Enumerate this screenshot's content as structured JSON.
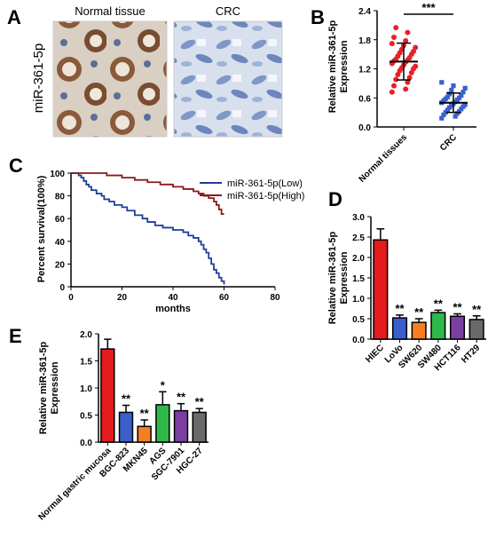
{
  "panels": {
    "A": {
      "letter": "A",
      "row_label": "miR-361-5p",
      "images": [
        {
          "label": "Normal tissue",
          "depiction": "ihc-brown-stained-glands"
        },
        {
          "label": "CRC",
          "depiction": "ihc-blue-hematoxylin-only"
        }
      ]
    },
    "B": {
      "letter": "B"
    },
    "C": {
      "letter": "C"
    },
    "D": {
      "letter": "D"
    },
    "E": {
      "letter": "E"
    }
  },
  "colors": {
    "red": "#e41a1c",
    "blue": "#3a5fcd",
    "orange": "#f57f20",
    "green": "#2fb84a",
    "purple": "#7b3fa0",
    "gray": "#6a6a6a",
    "low_line": "#1f3f9a",
    "high_line": "#8b1a1a",
    "dot_normal": "#e8202a",
    "dot_crc": "#3a5fcd"
  },
  "chart_data": [
    {
      "id": "B",
      "type": "scatter",
      "title": "",
      "ylabel": "Relative miR-361-5p\nExpression",
      "ylim": [
        0,
        2.4
      ],
      "yticks": [
        "0.0",
        "0.6",
        "1.2",
        "1.8",
        "2.4"
      ],
      "categories": [
        "Normal tissues",
        "CRC"
      ],
      "series": [
        {
          "category": "Normal tissues",
          "mean": 1.35,
          "sd": 0.38,
          "values": [
            0.72,
            0.78,
            0.85,
            0.92,
            0.98,
            1.02,
            1.08,
            1.12,
            1.16,
            1.2,
            1.22,
            1.25,
            1.28,
            1.31,
            1.34,
            1.36,
            1.38,
            1.4,
            1.43,
            1.46,
            1.5,
            1.53,
            1.56,
            1.6,
            1.64,
            1.68,
            1.72,
            1.78,
            1.85,
            1.95,
            2.05
          ]
        },
        {
          "category": "CRC",
          "mean": 0.5,
          "sd": 0.2,
          "values": [
            0.18,
            0.22,
            0.25,
            0.28,
            0.3,
            0.32,
            0.35,
            0.37,
            0.4,
            0.42,
            0.44,
            0.46,
            0.48,
            0.5,
            0.52,
            0.54,
            0.56,
            0.58,
            0.6,
            0.62,
            0.65,
            0.68,
            0.72,
            0.76,
            0.8,
            0.85,
            0.92
          ]
        }
      ],
      "significance": "***"
    },
    {
      "id": "C",
      "type": "line",
      "title": "",
      "xlabel": "months",
      "ylabel": "Percent survival(100%)",
      "xlim": [
        0,
        80
      ],
      "ylim": [
        0,
        100
      ],
      "xticks": [
        "0",
        "20",
        "40",
        "60",
        "80"
      ],
      "yticks": [
        "0",
        "20",
        "40",
        "60",
        "80",
        "100"
      ],
      "legend_placement": "top-right",
      "series": [
        {
          "name": "miR-361-5p(Low)",
          "x": [
            0,
            3,
            4,
            5,
            6,
            7,
            8,
            10,
            12,
            13,
            15,
            17,
            20,
            22,
            25,
            28,
            30,
            33,
            36,
            40,
            44,
            46,
            48,
            50,
            51,
            52,
            53,
            54,
            55,
            56,
            57,
            58,
            59,
            60
          ],
          "y": [
            100,
            98,
            96,
            93,
            90,
            88,
            85,
            82,
            80,
            77,
            75,
            72,
            70,
            67,
            63,
            60,
            57,
            54,
            52,
            50,
            48,
            45,
            43,
            40,
            37,
            33,
            30,
            25,
            20,
            15,
            12,
            8,
            5,
            2
          ]
        },
        {
          "name": "miR-361-5p(High)",
          "x": [
            0,
            10,
            14,
            20,
            25,
            30,
            35,
            40,
            44,
            48,
            50,
            52,
            54,
            56,
            57,
            58,
            59,
            60
          ],
          "y": [
            100,
            100,
            98,
            96,
            94,
            92,
            90,
            88,
            86,
            84,
            82,
            80,
            78,
            75,
            72,
            68,
            64,
            64
          ]
        }
      ]
    },
    {
      "id": "D",
      "type": "bar",
      "title": "",
      "ylabel": "Relative miR-361-5p\nExpression",
      "ylim": [
        0,
        3.0
      ],
      "yticks": [
        "0.0",
        "0.5",
        "1.0",
        "1.5",
        "2.0",
        "2.5",
        "3.0"
      ],
      "categories": [
        "HIEC",
        "LoVo",
        "SW620",
        "SW480",
        "HCT116",
        "HT29"
      ],
      "values": [
        2.43,
        0.52,
        0.41,
        0.65,
        0.56,
        0.48
      ],
      "errors": [
        0.27,
        0.07,
        0.09,
        0.06,
        0.06,
        0.09
      ],
      "colors": [
        "red",
        "blue",
        "orange",
        "green",
        "purple",
        "gray"
      ],
      "annotations": [
        "",
        "**",
        "**",
        "**",
        "**",
        "**"
      ]
    },
    {
      "id": "E",
      "type": "bar",
      "title": "",
      "ylabel": "Relative miR-361-5p\nExpression",
      "ylim": [
        0,
        2.0
      ],
      "yticks": [
        "0.0",
        "0.5",
        "1.0",
        "1.5",
        "2.0"
      ],
      "categories": [
        "Normal gastric mucosa",
        "BGC-823",
        "MKN45",
        "AGS",
        "SGC-7901",
        "HGC-27"
      ],
      "values": [
        1.72,
        0.55,
        0.29,
        0.69,
        0.58,
        0.55
      ],
      "errors": [
        0.18,
        0.13,
        0.12,
        0.24,
        0.13,
        0.07
      ],
      "colors": [
        "red",
        "blue",
        "orange",
        "green",
        "purple",
        "gray"
      ],
      "annotations": [
        "",
        "**",
        "**",
        "*",
        "**",
        "**"
      ]
    }
  ]
}
